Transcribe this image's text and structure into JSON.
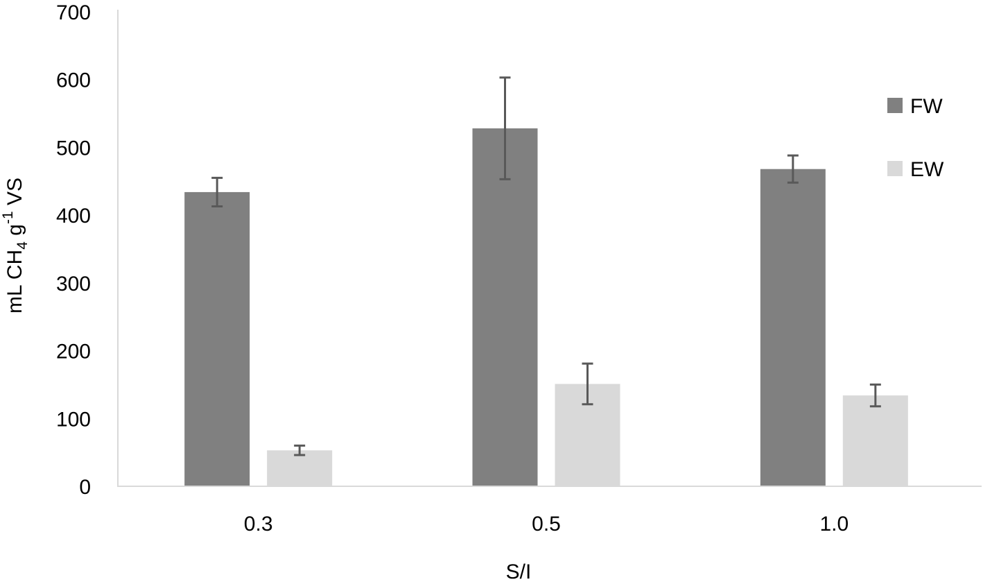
{
  "chart_data": {
    "type": "bar",
    "title": "",
    "xlabel": "S/I",
    "ylabel": "mL CH4 g-1 VS",
    "ylabel_parts": {
      "main": "mL CH",
      "sub": "4",
      "mid": " g",
      "sup": "-1",
      "end": " VS"
    },
    "categories": [
      "0.3",
      "0.5",
      "1.0"
    ],
    "series": [
      {
        "name": "FW",
        "color": "#808080",
        "values": [
          434,
          528,
          468
        ],
        "error": [
          21,
          75,
          20
        ]
      },
      {
        "name": "EW",
        "color": "#d9d9d9",
        "values": [
          53,
          151,
          134
        ],
        "error": [
          7,
          30,
          16
        ]
      }
    ],
    "ylim": [
      0,
      700
    ],
    "yticks": [
      0,
      100,
      200,
      300,
      400,
      500,
      600,
      700
    ],
    "grid": false,
    "legend_position": "right",
    "error_bar_color": "#595959",
    "axis_color": "#d9d9d9"
  }
}
